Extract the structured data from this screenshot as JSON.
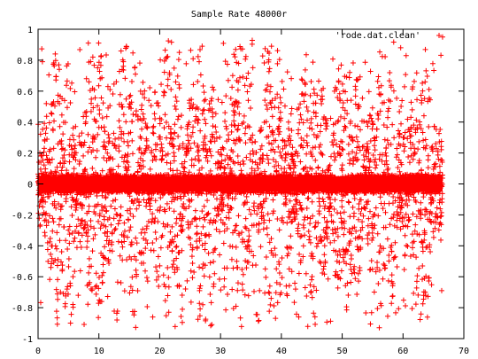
{
  "chart_data": {
    "type": "scatter",
    "title": "Sample Rate 48000r",
    "xlabel": "",
    "ylabel": "",
    "xlim": [
      0,
      70
    ],
    "ylim": [
      -1,
      1
    ],
    "x_ticks": [
      "0",
      "10",
      "20",
      "30",
      "40",
      "50",
      "60",
      "70"
    ],
    "y_ticks": [
      "1",
      "0.8",
      "0.6",
      "0.4",
      "0.2",
      "0",
      "-0.2",
      "-0.4",
      "-0.6",
      "-0.8",
      "-1"
    ],
    "grid": false,
    "legend_position": "top-right",
    "marker": "+",
    "series": [
      {
        "name": "'rode.dat.clean'",
        "color": "#ff0000",
        "x_start": 0,
        "x_end": 66.5,
        "y_range": [
          -0.93,
          0.95
        ],
        "dense_band": [
          -0.05,
          0.05
        ],
        "note_points": [
          {
            "x": 66.5,
            "y": 0.95
          }
        ]
      }
    ]
  }
}
